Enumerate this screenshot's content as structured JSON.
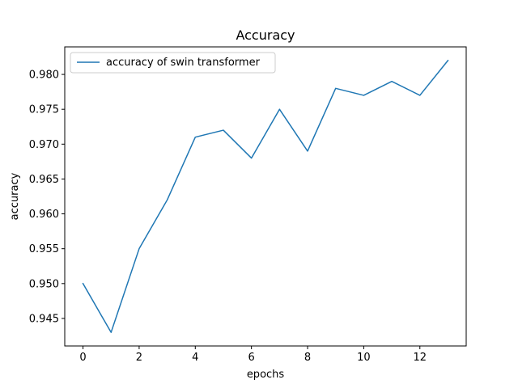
{
  "chart_data": {
    "type": "line",
    "title": "Accuracy",
    "xlabel": "epochs",
    "ylabel": "accuracy",
    "x": [
      0,
      1,
      2,
      3,
      4,
      5,
      6,
      7,
      8,
      9,
      10,
      11,
      12,
      13
    ],
    "series": [
      {
        "name": "accuracy of swin transformer",
        "color": "#1f77b4",
        "values": [
          0.95,
          0.943,
          0.955,
          0.962,
          0.971,
          0.972,
          0.968,
          0.975,
          0.969,
          0.978,
          0.977,
          0.979,
          0.977,
          0.982
        ]
      }
    ],
    "xlim": [
      -0.65,
      13.65
    ],
    "ylim": [
      0.94105,
      0.98395
    ],
    "xticks": [
      0,
      2,
      4,
      6,
      8,
      10,
      12
    ],
    "xtick_labels": [
      "0",
      "2",
      "4",
      "6",
      "8",
      "10",
      "12"
    ],
    "yticks": [
      0.945,
      0.95,
      0.955,
      0.96,
      0.965,
      0.97,
      0.975,
      0.98
    ],
    "ytick_labels": [
      "0.945",
      "0.950",
      "0.955",
      "0.960",
      "0.965",
      "0.970",
      "0.975",
      "0.980"
    ],
    "grid": false,
    "legend_position": "upper-left"
  }
}
